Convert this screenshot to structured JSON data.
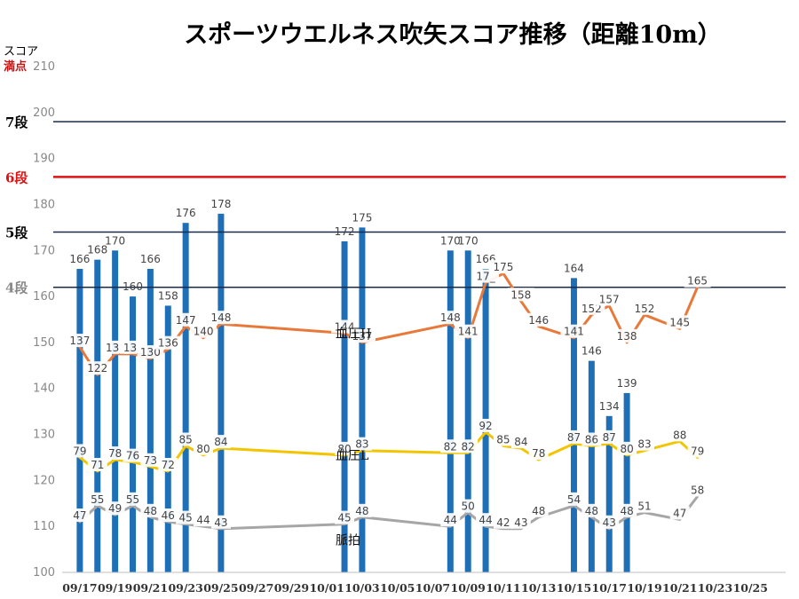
{
  "chart_data": {
    "type": "bar",
    "title": "スポーツウエルネス吹矢スコア推移（距離10m）",
    "ylabel": "スコア",
    "ylabel_note": "満点",
    "ylim": [
      100,
      210
    ],
    "yticks": [
      100,
      110,
      120,
      130,
      140,
      150,
      160,
      170,
      180,
      190,
      200,
      210
    ],
    "x_start": "09/16",
    "x_end": "10/27",
    "xticks": [
      "09/17",
      "09/19",
      "09/21",
      "09/23",
      "09/25",
      "09/27",
      "09/29",
      "10/01",
      "10/03",
      "10/05",
      "10/07",
      "10/09",
      "10/11",
      "10/13",
      "10/15",
      "10/17",
      "10/19",
      "10/21",
      "10/23",
      "10/25"
    ],
    "grid": false,
    "bars": {
      "color": "#1f6fb7",
      "points": [
        {
          "date": "09/17",
          "value": 166,
          "label": "166"
        },
        {
          "date": "09/18",
          "value": 168,
          "label": "168"
        },
        {
          "date": "09/19",
          "value": 170,
          "label": "170"
        },
        {
          "date": "09/20",
          "value": 160,
          "label": "160"
        },
        {
          "date": "09/21",
          "value": 166,
          "label": "166"
        },
        {
          "date": "09/22",
          "value": 158,
          "label": "158"
        },
        {
          "date": "09/23",
          "value": 176,
          "label": "176"
        },
        {
          "date": "09/25",
          "value": 178,
          "label": "178"
        },
        {
          "date": "10/02",
          "value": 172,
          "label": "172"
        },
        {
          "date": "10/03",
          "value": 175,
          "label": "175"
        },
        {
          "date": "10/08",
          "value": 170,
          "label": "170"
        },
        {
          "date": "10/09",
          "value": 170,
          "label": "170"
        },
        {
          "date": "10/10",
          "value": 166,
          "label": "166"
        },
        {
          "date": "10/15",
          "value": 164,
          "label": "164"
        },
        {
          "date": "10/16",
          "value": 146,
          "label": "146"
        },
        {
          "date": "10/17",
          "value": 134,
          "label": "134"
        },
        {
          "date": "10/18",
          "value": 139,
          "label": "139"
        }
      ]
    },
    "levels": [
      {
        "label": "7段",
        "value": 198,
        "color": "#1a2a4a",
        "label_color": "#000000"
      },
      {
        "label": "6段",
        "value": 186,
        "color": "#dd1111",
        "label_color": "#dd1111"
      },
      {
        "label": "5段",
        "value": 174,
        "color": "#1a2a4a",
        "label_color": "#000000"
      },
      {
        "label": "4段",
        "value": 162,
        "color": "#1a2a4a",
        "label_color": "#888888"
      }
    ],
    "series": [
      {
        "name": "血圧H",
        "color": "#e8793a",
        "annotation_date": "10/02",
        "annotation_value": 152,
        "points": [
          {
            "date": "09/17",
            "value": 149,
            "label": "137"
          },
          {
            "date": "09/18",
            "value": 143,
            "label": "122"
          },
          {
            "date": "09/19",
            "value": 147.5,
            "label": "13_"
          },
          {
            "date": "09/20",
            "value": 147.5,
            "label": "13_"
          },
          {
            "date": "09/21",
            "value": 146.5,
            "label": "130"
          },
          {
            "date": "09/22",
            "value": 148.5,
            "label": "136"
          },
          {
            "date": "09/23",
            "value": 153.5,
            "label": "147"
          },
          {
            "date": "09/24",
            "value": 151,
            "label": "140"
          },
          {
            "date": "09/25",
            "value": 154,
            "label": "148"
          },
          {
            "date": "10/02",
            "value": 152,
            "label": "144"
          },
          {
            "date": "10/03",
            "value": 150,
            "label": "137"
          },
          {
            "date": "10/08",
            "value": 154,
            "label": "148"
          },
          {
            "date": "10/09",
            "value": 151,
            "label": "141"
          },
          {
            "date": "10/10",
            "value": 163,
            "label": "17_"
          },
          {
            "date": "10/11",
            "value": 165,
            "label": "175"
          },
          {
            "date": "10/12",
            "value": 159,
            "label": "158"
          },
          {
            "date": "10/13",
            "value": 153.5,
            "label": "146"
          },
          {
            "date": "10/15",
            "value": 151,
            "label": "141"
          },
          {
            "date": "10/16",
            "value": 156,
            "label": "152"
          },
          {
            "date": "10/17",
            "value": 158,
            "label": "157"
          },
          {
            "date": "10/18",
            "value": 150,
            "label": "138"
          },
          {
            "date": "10/19",
            "value": 156,
            "label": "152"
          },
          {
            "date": "10/21",
            "value": 153,
            "label": "145"
          },
          {
            "date": "10/22",
            "value": 162,
            "label": "165"
          }
        ]
      },
      {
        "name": "血圧L",
        "color": "#f2c500",
        "annotation_date": "10/02",
        "annotation_value": 125.5,
        "points": [
          {
            "date": "09/17",
            "value": 125,
            "label": "79"
          },
          {
            "date": "09/18",
            "value": 122,
            "label": "71"
          },
          {
            "date": "09/19",
            "value": 124.5,
            "label": "78"
          },
          {
            "date": "09/20",
            "value": 124,
            "label": "76"
          },
          {
            "date": "09/21",
            "value": 123,
            "label": "73"
          },
          {
            "date": "09/22",
            "value": 122,
            "label": "72"
          },
          {
            "date": "09/23",
            "value": 127.5,
            "label": "85"
          },
          {
            "date": "09/24",
            "value": 125.5,
            "label": "80"
          },
          {
            "date": "09/25",
            "value": 127,
            "label": "84"
          },
          {
            "date": "10/02",
            "value": 125.5,
            "label": "80"
          },
          {
            "date": "10/03",
            "value": 126.5,
            "label": "83"
          },
          {
            "date": "10/08",
            "value": 126,
            "label": "82"
          },
          {
            "date": "10/09",
            "value": 126,
            "label": "82"
          },
          {
            "date": "10/10",
            "value": 130.5,
            "label": "92"
          },
          {
            "date": "10/11",
            "value": 127.5,
            "label": "85"
          },
          {
            "date": "10/12",
            "value": 127,
            "label": "84"
          },
          {
            "date": "10/13",
            "value": 124.5,
            "label": "78"
          },
          {
            "date": "10/15",
            "value": 128,
            "label": "87"
          },
          {
            "date": "10/16",
            "value": 127.5,
            "label": "86"
          },
          {
            "date": "10/17",
            "value": 128,
            "label": "87"
          },
          {
            "date": "10/18",
            "value": 125.5,
            "label": "80"
          },
          {
            "date": "10/19",
            "value": 126.5,
            "label": "83"
          },
          {
            "date": "10/21",
            "value": 128.5,
            "label": "88"
          },
          {
            "date": "10/22",
            "value": 125,
            "label": "79"
          }
        ]
      },
      {
        "name": "脈拍",
        "color": "#a6a6a6",
        "annotation_date": "10/02",
        "annotation_value": 107,
        "points": [
          {
            "date": "09/17",
            "value": 111,
            "label": "47"
          },
          {
            "date": "09/18",
            "value": 114.5,
            "label": "55"
          },
          {
            "date": "09/19",
            "value": 112.5,
            "label": "49"
          },
          {
            "date": "09/20",
            "value": 114.5,
            "label": "55"
          },
          {
            "date": "09/21",
            "value": 112,
            "label": "48"
          },
          {
            "date": "09/22",
            "value": 111,
            "label": "46"
          },
          {
            "date": "09/23",
            "value": 110.5,
            "label": "45"
          },
          {
            "date": "09/24",
            "value": 110,
            "label": "44"
          },
          {
            "date": "09/25",
            "value": 109.5,
            "label": "43"
          },
          {
            "date": "10/02",
            "value": 110.5,
            "label": "45"
          },
          {
            "date": "10/03",
            "value": 112,
            "label": "48"
          },
          {
            "date": "10/08",
            "value": 110,
            "label": "44"
          },
          {
            "date": "10/09",
            "value": 113,
            "label": "50"
          },
          {
            "date": "10/10",
            "value": 110,
            "label": "44"
          },
          {
            "date": "10/11",
            "value": 109.5,
            "label": "42"
          },
          {
            "date": "10/12",
            "value": 109.5,
            "label": "43"
          },
          {
            "date": "10/13",
            "value": 112,
            "label": "48"
          },
          {
            "date": "10/15",
            "value": 114.5,
            "label": "54"
          },
          {
            "date": "10/16",
            "value": 112,
            "label": "48"
          },
          {
            "date": "10/17",
            "value": 109.5,
            "label": "43"
          },
          {
            "date": "10/18",
            "value": 112,
            "label": "48"
          },
          {
            "date": "10/19",
            "value": 113,
            "label": "51"
          },
          {
            "date": "10/21",
            "value": 111.5,
            "label": "47"
          },
          {
            "date": "10/22",
            "value": 116.5,
            "label": "58"
          }
        ]
      }
    ]
  }
}
